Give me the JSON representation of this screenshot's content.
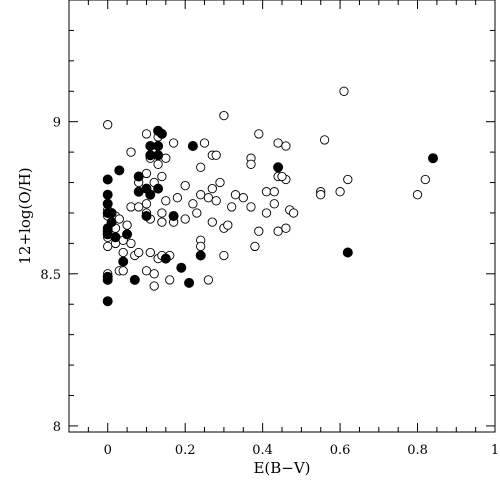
{
  "chart_data": {
    "type": "scatter",
    "xlabel": "E(B−V)",
    "ylabel": "12+log(O/H)",
    "xlim": [
      -0.1,
      1.0
    ],
    "ylim": [
      7.98,
      9.4
    ],
    "x_ticks": [
      {
        "value": 0,
        "label": "0"
      },
      {
        "value": 0.2,
        "label": "0.2"
      },
      {
        "value": 0.4,
        "label": "0.4"
      },
      {
        "value": 0.6,
        "label": "0.6"
      },
      {
        "value": 0.8,
        "label": "0.8"
      },
      {
        "value": 1.0,
        "label": "1"
      }
    ],
    "y_ticks": [
      {
        "value": 8,
        "label": "8"
      },
      {
        "value": 8.5,
        "label": "8.5"
      },
      {
        "value": 9,
        "label": "9"
      }
    ],
    "grid": false,
    "series": [
      {
        "marker": "open-circle",
        "points": [
          [
            0.0,
            8.99
          ],
          [
            0.1,
            8.96
          ],
          [
            0.13,
            8.95
          ],
          [
            0.17,
            8.93
          ],
          [
            0.25,
            8.93
          ],
          [
            0.3,
            9.02
          ],
          [
            0.39,
            8.96
          ],
          [
            0.44,
            8.93
          ],
          [
            0.46,
            8.92
          ],
          [
            0.56,
            8.94
          ],
          [
            0.61,
            9.1
          ],
          [
            0.06,
            8.9
          ],
          [
            0.27,
            8.89
          ],
          [
            0.28,
            8.89
          ],
          [
            0.11,
            8.88
          ],
          [
            0.15,
            8.88
          ],
          [
            0.13,
            8.86
          ],
          [
            0.24,
            8.85
          ],
          [
            0.37,
            8.88
          ],
          [
            0.37,
            8.86
          ],
          [
            0.44,
            8.82
          ],
          [
            0.46,
            8.81
          ],
          [
            0.45,
            8.82
          ],
          [
            0.62,
            8.81
          ],
          [
            0.82,
            8.81
          ],
          [
            0.1,
            8.83
          ],
          [
            0.14,
            8.82
          ],
          [
            0.12,
            8.8
          ],
          [
            0.08,
            8.8
          ],
          [
            0.2,
            8.79
          ],
          [
            0.27,
            8.78
          ],
          [
            0.29,
            8.8
          ],
          [
            0.33,
            8.76
          ],
          [
            0.35,
            8.75
          ],
          [
            0.37,
            8.72
          ],
          [
            0.41,
            8.77
          ],
          [
            0.43,
            8.77
          ],
          [
            0.55,
            8.77
          ],
          [
            0.55,
            8.76
          ],
          [
            0.6,
            8.77
          ],
          [
            0.8,
            8.76
          ],
          [
            0.0,
            8.76
          ],
          [
            0.0,
            8.71
          ],
          [
            0.0,
            8.69
          ],
          [
            0.06,
            8.72
          ],
          [
            0.08,
            8.72
          ],
          [
            0.1,
            8.73
          ],
          [
            0.15,
            8.74
          ],
          [
            0.18,
            8.75
          ],
          [
            0.22,
            8.73
          ],
          [
            0.24,
            8.76
          ],
          [
            0.26,
            8.75
          ],
          [
            0.28,
            8.74
          ],
          [
            0.32,
            8.72
          ],
          [
            0.47,
            8.71
          ],
          [
            0.48,
            8.7
          ],
          [
            0.43,
            8.73
          ],
          [
            0.02,
            8.65
          ],
          [
            0.02,
            8.69
          ],
          [
            0.03,
            8.68
          ],
          [
            0.05,
            8.66
          ],
          [
            0.1,
            8.7
          ],
          [
            0.11,
            8.68
          ],
          [
            0.14,
            8.7
          ],
          [
            0.14,
            8.67
          ],
          [
            0.17,
            8.67
          ],
          [
            0.2,
            8.68
          ],
          [
            0.23,
            8.7
          ],
          [
            0.27,
            8.67
          ],
          [
            0.3,
            8.65
          ],
          [
            0.31,
            8.66
          ],
          [
            0.39,
            8.64
          ],
          [
            0.41,
            8.7
          ],
          [
            0.44,
            8.64
          ],
          [
            0.46,
            8.65
          ],
          [
            0.0,
            8.62
          ],
          [
            0.0,
            8.59
          ],
          [
            0.02,
            8.6
          ],
          [
            0.04,
            8.61
          ],
          [
            0.06,
            8.6
          ],
          [
            0.07,
            8.56
          ],
          [
            0.08,
            8.57
          ],
          [
            0.11,
            8.57
          ],
          [
            0.13,
            8.55
          ],
          [
            0.14,
            8.56
          ],
          [
            0.15,
            8.55
          ],
          [
            0.16,
            8.56
          ],
          [
            0.24,
            8.61
          ],
          [
            0.24,
            8.59
          ],
          [
            0.3,
            8.56
          ],
          [
            0.38,
            8.59
          ],
          [
            0.04,
            8.57
          ],
          [
            0.03,
            8.51
          ],
          [
            0.04,
            8.51
          ],
          [
            0.1,
            8.51
          ],
          [
            0.12,
            8.5
          ],
          [
            0.0,
            8.5
          ],
          [
            0.12,
            8.46
          ],
          [
            0.16,
            8.48
          ],
          [
            0.26,
            8.48
          ]
        ]
      },
      {
        "marker": "filled-circle",
        "points": [
          [
            0.14,
            8.96
          ],
          [
            0.13,
            8.97
          ],
          [
            0.11,
            8.92
          ],
          [
            0.13,
            8.92
          ],
          [
            0.22,
            8.92
          ],
          [
            0.11,
            8.89
          ],
          [
            0.13,
            8.89
          ],
          [
            0.84,
            8.88
          ],
          [
            0.44,
            8.85
          ],
          [
            0.03,
            8.84
          ],
          [
            0.0,
            8.81
          ],
          [
            0.08,
            8.82
          ],
          [
            0.08,
            8.77
          ],
          [
            0.1,
            8.78
          ],
          [
            0.13,
            8.78
          ],
          [
            0.11,
            8.76
          ],
          [
            0.0,
            8.76
          ],
          [
            0.0,
            8.73
          ],
          [
            0.0,
            8.7
          ],
          [
            0.01,
            8.7
          ],
          [
            0.01,
            8.67
          ],
          [
            0.0,
            8.65
          ],
          [
            0.0,
            8.64
          ],
          [
            0.0,
            8.63
          ],
          [
            0.02,
            8.62
          ],
          [
            0.1,
            8.69
          ],
          [
            0.17,
            8.69
          ],
          [
            0.05,
            8.63
          ],
          [
            0.04,
            8.54
          ],
          [
            0.15,
            8.55
          ],
          [
            0.24,
            8.56
          ],
          [
            0.62,
            8.57
          ],
          [
            0.19,
            8.52
          ],
          [
            0.0,
            8.49
          ],
          [
            0.0,
            8.48
          ],
          [
            0.07,
            8.48
          ],
          [
            0.21,
            8.47
          ],
          [
            0.0,
            8.41
          ]
        ]
      }
    ]
  }
}
